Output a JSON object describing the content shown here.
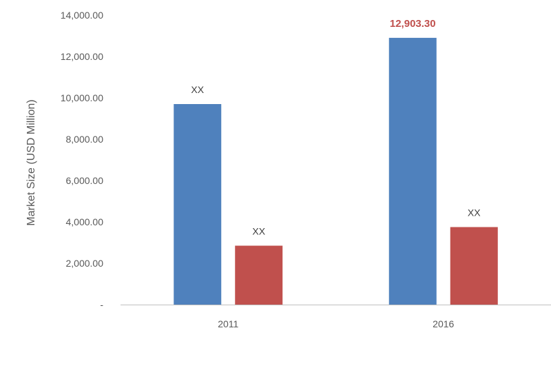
{
  "chart_data": {
    "type": "bar",
    "categories": [
      "2011",
      "2016"
    ],
    "series": [
      {
        "values": [
          9700,
          12903.3
        ],
        "labels": [
          "XX",
          "12,903.30"
        ],
        "color": "#4f81bd"
      },
      {
        "values": [
          2850,
          3750
        ],
        "labels": [
          "XX",
          "XX"
        ],
        "color": "#c0504d"
      }
    ],
    "ylabel": "Market Size (USD Million)",
    "xlabel": "",
    "ylim": [
      0,
      14000
    ],
    "yticks": [
      0,
      2000,
      4000,
      6000,
      8000,
      10000,
      12000,
      14000
    ],
    "ytick_labels": [
      "-",
      "2,000.00",
      "4,000.00",
      "6,000.00",
      "8,000.00",
      "10,000.00",
      "12,000.00",
      "14,000.00"
    ],
    "grid": false,
    "highlight_label_color": "#c0504d"
  }
}
